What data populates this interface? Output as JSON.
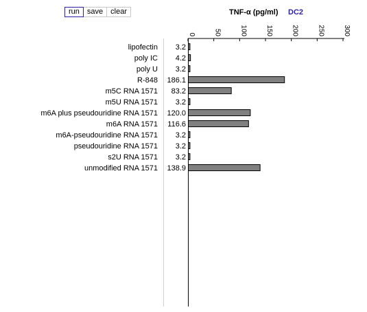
{
  "toolbar": {
    "run_label": "run",
    "save_label": "save",
    "clear_label": "clear"
  },
  "chart_data": {
    "type": "bar",
    "orientation": "horizontal",
    "title": "TNF-α (pg/ml)",
    "subtitle": "DC2",
    "xlim": [
      0,
      300
    ],
    "x_ticks": [
      "0",
      "50",
      "100",
      "150",
      "200",
      "250",
      "300"
    ],
    "categories": [
      "lipofectin",
      "poly IC",
      "poly U",
      "R-848",
      "m5C RNA 1571",
      "m5U RNA 1571",
      "m6A plus pseudouridine RNA 1571",
      "m6A RNA 1571",
      "m6A-pseudouridine RNA 1571",
      "pseudouridine RNA 1571",
      "s2U RNA 1571",
      "unmodified RNA 1571"
    ],
    "values": [
      3.2,
      4.2,
      3.2,
      186.1,
      83.2,
      3.2,
      120.0,
      116.6,
      3.2,
      3.2,
      3.2,
      138.9
    ],
    "value_labels": [
      "3.2",
      "4.2",
      "3.2",
      "186.1",
      "83.2",
      "3.2",
      "120.0",
      "116.6",
      "3.2",
      "3.2",
      "3.2",
      "138.9"
    ],
    "bar_color": "#808080",
    "grid": false
  }
}
